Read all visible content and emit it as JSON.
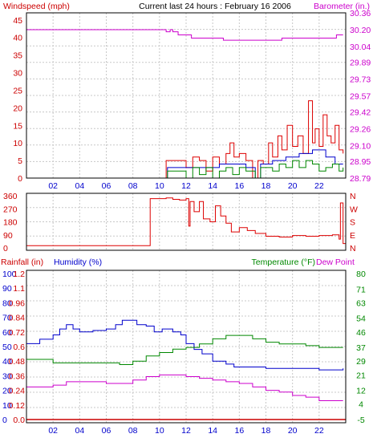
{
  "chart_data": [
    {
      "type": "line",
      "title": "Current last 24 hours : February 16 2006",
      "left_axis": {
        "label": "Windspeed (mph)",
        "ticks": [
          0,
          5,
          10,
          15,
          20,
          25,
          30,
          35,
          40,
          45
        ],
        "range": [
          0,
          47
        ],
        "color": "#cc0000"
      },
      "right_axis": {
        "label": "Barometer (in.)",
        "ticks": [
          "28.79",
          "28.95",
          "29.10",
          "29.26",
          "29.42",
          "29.57",
          "29.73",
          "29.89",
          "30.04",
          "30.20",
          "30.36"
        ],
        "range": [
          28.79,
          30.36
        ],
        "color": "#cc00cc"
      },
      "x_ticks": [
        "02",
        "04",
        "06",
        "08",
        "10",
        "12",
        "14",
        "16",
        "18",
        "20",
        "22"
      ],
      "x_range": [
        0,
        24
      ],
      "grid": true,
      "series": [
        {
          "key": "barometer",
          "axis": "right",
          "color": "#cc00cc",
          "x": [
            0,
            10.2,
            10.5,
            10.8,
            11.0,
            11.4,
            11.7,
            12.4,
            14.8,
            19.2,
            23.0,
            23.3,
            23.8
          ],
          "values": [
            30.2,
            30.2,
            30.18,
            30.2,
            30.18,
            30.15,
            30.15,
            30.12,
            30.1,
            30.12,
            30.12,
            30.15,
            30.15
          ]
        },
        {
          "key": "wind_gust",
          "axis": "left",
          "color": "#dd0000",
          "x": [
            0,
            10.5,
            10.5,
            11.5,
            12.0,
            12.5,
            13.0,
            13.5,
            14.0,
            14.5,
            15.0,
            15.3,
            15.6,
            16.0,
            16.5,
            17.0,
            17.4,
            17.8,
            18.2,
            18.5,
            18.9,
            19.2,
            19.6,
            20.0,
            20.4,
            20.8,
            21.2,
            21.5,
            21.7,
            22.0,
            22.3,
            22.6,
            22.9,
            23.2,
            23.5,
            23.8
          ],
          "values": [
            0,
            0,
            5,
            5,
            3,
            6,
            5,
            2,
            6,
            4,
            7,
            10,
            6,
            7,
            5,
            0,
            5,
            4,
            10,
            6,
            12,
            8,
            15,
            9,
            12,
            7,
            22,
            10,
            14,
            9,
            18,
            12,
            10,
            15,
            8,
            7
          ]
        },
        {
          "key": "wind_avg",
          "axis": "left",
          "color": "#0000cc",
          "x": [
            0,
            10.5,
            10.6,
            11.5,
            12.5,
            13.5,
            14.5,
            15.5,
            16.5,
            17.2,
            17.6,
            18.5,
            19.5,
            20.5,
            21.5,
            22.5,
            23.2,
            23.8
          ],
          "values": [
            0,
            0,
            3,
            3,
            3,
            3,
            4,
            4,
            3,
            0,
            4,
            5,
            6,
            7,
            8,
            6,
            4,
            4
          ]
        },
        {
          "key": "wind_min",
          "axis": "left",
          "color": "#008800",
          "x": [
            0,
            10.5,
            10.6,
            11.5,
            12.0,
            12.5,
            13.0,
            13.5,
            14.0,
            14.5,
            15.0,
            15.5,
            16.0,
            16.5,
            17.2,
            17.6,
            18.5,
            19.0,
            19.5,
            20.0,
            20.5,
            21.0,
            21.5,
            22.0,
            22.5,
            23.0,
            23.5,
            23.8
          ],
          "values": [
            0,
            0,
            2,
            2,
            0,
            3,
            1,
            3,
            0,
            2,
            3,
            1,
            3,
            2,
            0,
            3,
            2,
            4,
            3,
            5,
            3,
            5,
            4,
            2,
            3,
            4,
            2,
            3
          ]
        }
      ]
    },
    {
      "type": "line",
      "left_axis": {
        "ticks": [
          0,
          90,
          180,
          270,
          360
        ],
        "range": [
          0,
          360
        ],
        "color": "#cc0000"
      },
      "right_axis": {
        "ticks": [
          "N",
          "E",
          "S",
          "W",
          "N"
        ],
        "color": "#cc0000"
      },
      "x_range": [
        0,
        24
      ],
      "grid": true,
      "series": [
        {
          "key": "wind_direction",
          "axis": "left",
          "color": "#dd0000",
          "x": [
            0,
            9.3,
            9.3,
            10.5,
            11.0,
            11.5,
            12.0,
            12.2,
            12.3,
            12.6,
            13.0,
            13.3,
            13.8,
            14.2,
            14.6,
            15.0,
            15.4,
            16.0,
            16.6,
            17.2,
            18.0,
            19.0,
            20.0,
            21.0,
            22.0,
            23.0,
            23.5,
            23.6,
            23.8,
            24.0
          ],
          "values": [
            15,
            15,
            340,
            345,
            335,
            330,
            340,
            150,
            320,
            250,
            320,
            200,
            180,
            290,
            220,
            170,
            110,
            140,
            120,
            100,
            80,
            75,
            85,
            80,
            85,
            90,
            60,
            310,
            30,
            20
          ]
        }
      ]
    },
    {
      "type": "line",
      "left_axis_1": {
        "label": "Rainfall (in)",
        "ticks": [
          "0.0",
          "0.12",
          "0.24",
          "0.36",
          "0.48",
          "0.6",
          "0.72",
          "0.84",
          "0.96",
          "1.1",
          "1.2"
        ],
        "color": "#cc0000"
      },
      "left_axis_2": {
        "label": "Humidity (%)",
        "ticks": [
          0,
          10,
          20,
          30,
          40,
          50,
          60,
          70,
          80,
          90,
          100
        ],
        "range": [
          0,
          100
        ],
        "color": "#0000cc"
      },
      "right_axis": {
        "label": "Temperature (°F)",
        "label_2": "Dew Point",
        "ticks": [
          -5,
          4,
          12,
          21,
          29,
          37,
          46,
          54,
          63,
          71,
          80
        ],
        "range": [
          -5,
          80
        ],
        "color": "#008800"
      },
      "x_ticks": [
        "02",
        "04",
        "06",
        "08",
        "10",
        "12",
        "14",
        "16",
        "18",
        "20",
        "22"
      ],
      "x_range": [
        0,
        24
      ],
      "grid": true,
      "series": [
        {
          "key": "humidity",
          "axis": "humidity",
          "color": "#0000cc",
          "x": [
            0,
            1.0,
            2.0,
            2.5,
            3.0,
            3.5,
            4.0,
            5.0,
            6.0,
            6.7,
            7.2,
            7.7,
            8.3,
            9.0,
            9.6,
            10.2,
            11.0,
            11.6,
            12.0,
            12.6,
            13.2,
            14.0,
            15.0,
            15.6,
            16.5,
            18.0,
            20.0,
            22.0,
            23.8
          ],
          "values": [
            52,
            55,
            58,
            62,
            65,
            62,
            60,
            61,
            62,
            65,
            68,
            68,
            65,
            64,
            60,
            62,
            60,
            58,
            52,
            48,
            45,
            40,
            38,
            36,
            36,
            35,
            35,
            34,
            35
          ]
        },
        {
          "key": "temperature",
          "axis": "right",
          "color": "#008800",
          "x": [
            0,
            2.0,
            4.0,
            6.0,
            7.0,
            8.0,
            9.0,
            10.0,
            11.0,
            12.0,
            13.0,
            14.0,
            15.0,
            16.0,
            17.0,
            18.0,
            19.0,
            20.0,
            21.0,
            22.0,
            23.0,
            23.8
          ],
          "values": [
            30,
            28,
            28,
            28,
            27,
            29,
            32,
            34,
            36,
            37,
            39,
            42,
            44,
            44,
            42,
            40,
            39,
            39,
            38,
            37,
            37,
            37
          ]
        },
        {
          "key": "dew_point",
          "axis": "right",
          "color": "#cc00cc",
          "x": [
            0,
            2.0,
            3.0,
            4.0,
            6.0,
            7.0,
            8.0,
            9.0,
            10.0,
            11.0,
            12.0,
            13.0,
            14.0,
            15.0,
            16.0,
            17.0,
            18.0,
            19.0,
            20.0,
            21.0,
            22.0,
            23.0,
            23.8
          ],
          "values": [
            14,
            15,
            17,
            17,
            16,
            16,
            18,
            20,
            21,
            21,
            20,
            19,
            18,
            17,
            16,
            14,
            12,
            11,
            9,
            8,
            6,
            6,
            6
          ]
        },
        {
          "key": "rainfall",
          "axis": "rain",
          "color": "#cc0000",
          "x": [
            0,
            24
          ],
          "values": [
            0,
            0
          ]
        }
      ]
    }
  ]
}
